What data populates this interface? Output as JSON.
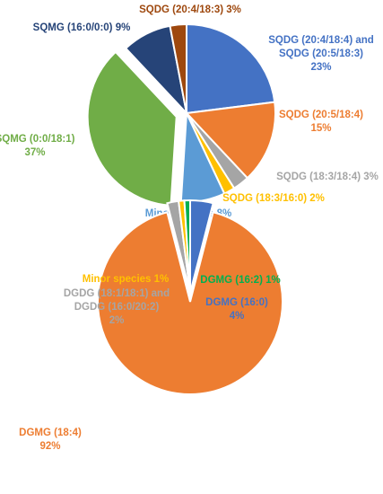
{
  "chart_data": [
    {
      "type": "pie",
      "title": "",
      "slices": [
        {
          "label_lines": [
            "SQDG (20:4/18:4) and",
            "SQDG (20:5/18:3)",
            "23%"
          ],
          "value": 23,
          "color": "#4472C4"
        },
        {
          "label_lines": [
            "SQDG (20:5/18:4)",
            "15%"
          ],
          "value": 15,
          "color": "#ED7D31"
        },
        {
          "label_lines": [
            "SQDG (18:3/18:4) 3%"
          ],
          "value": 3,
          "color": "#A5A5A5"
        },
        {
          "label_lines": [
            "SQDG (18:3/16:0) 2%"
          ],
          "value": 2,
          "color": "#FFC000"
        },
        {
          "label_lines": [
            "Minor species 8%"
          ],
          "value": 8,
          "color": "#5B9BD5"
        },
        {
          "label_lines": [
            "SQMG (0:0/18:1)",
            "37%"
          ],
          "value": 37,
          "color": "#70AD47"
        },
        {
          "label_lines": [
            "SQMG (16:0/0:0) 9%"
          ],
          "value": 9,
          "color": "#264478"
        },
        {
          "label_lines": [
            "SQDG (20:4/18:3) 3%"
          ],
          "value": 3,
          "color": "#9E480E"
        }
      ],
      "exploded_slice": "SQMG (0:0/18:1)"
    },
    {
      "type": "pie",
      "title": "",
      "slices": [
        {
          "label_lines": [
            "DGMG (16:0)",
            "4%"
          ],
          "value": 4,
          "color": "#4472C4"
        },
        {
          "label_lines": [
            "DGMG (18:4)",
            "92%"
          ],
          "value": 92,
          "color": "#ED7D31"
        },
        {
          "label_lines": [
            "DGDG (18:1/18:1) and",
            "DGDG (16:0/20:2)",
            "2%"
          ],
          "value": 2,
          "color": "#A5A5A5"
        },
        {
          "label_lines": [
            "Minor species 1%"
          ],
          "value": 1,
          "color": "#FFC000"
        },
        {
          "label_lines": [
            "DGMG (16:2) 1%"
          ],
          "value": 1,
          "color": "#00B050"
        }
      ],
      "exploded_slice": "DGMG (18:4)"
    }
  ]
}
